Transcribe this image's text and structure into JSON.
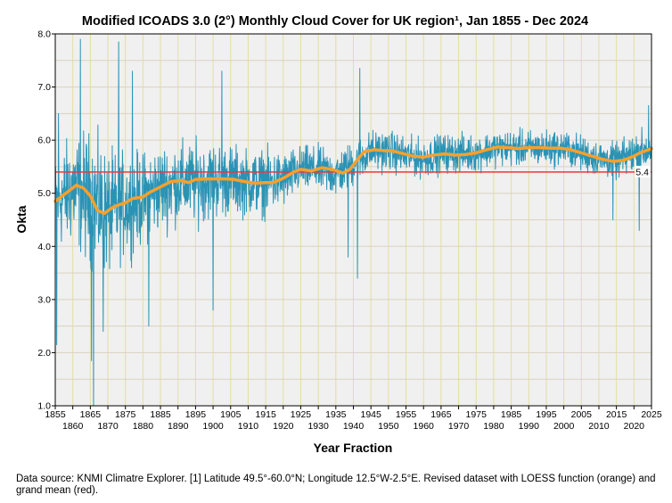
{
  "chart_data": {
    "type": "line",
    "title": "Modified ICOADS 3.0 (2°) Monthly Cloud Cover for UK region¹, Jan 1855 - Dec 2024",
    "xlabel": "Year Fraction",
    "ylabel": "Okta",
    "xlim": [
      1855,
      2025
    ],
    "ylim": [
      1.0,
      8.0
    ],
    "x_ticks_top_row": [
      "1855",
      "1865",
      "1875",
      "1885",
      "1895",
      "1905",
      "1915",
      "1925",
      "1935",
      "1945",
      "1955",
      "1965",
      "1975",
      "1985",
      "1995",
      "2005",
      "2015",
      "2025"
    ],
    "x_ticks_bottom_row": [
      "1860",
      "1870",
      "1880",
      "1890",
      "1900",
      "1910",
      "1920",
      "1930",
      "1940",
      "1950",
      "1960",
      "1970",
      "1980",
      "1990",
      "2000",
      "2010",
      "2020"
    ],
    "y_ticks": [
      "1.0",
      "2.0",
      "3.0",
      "4.0",
      "5.0",
      "6.0",
      "7.0",
      "8.0"
    ],
    "series": [
      {
        "name": "Monthly cloud cover",
        "color": "#2a93b5",
        "note": "monthly values, Jan 1855 - Dec 2024 (approximate envelope)",
        "envelope": {
          "x": [
            1855,
            1860,
            1865,
            1870,
            1875,
            1880,
            1885,
            1890,
            1895,
            1900,
            1905,
            1910,
            1915,
            1920,
            1925,
            1930,
            1935,
            1940,
            1945,
            1950,
            1955,
            1960,
            1965,
            1970,
            1975,
            1980,
            1985,
            1990,
            1995,
            2000,
            2005,
            2010,
            2015,
            2020,
            2025
          ],
          "center": [
            4.8,
            5.1,
            4.9,
            4.6,
            4.8,
            4.9,
            5.1,
            5.2,
            5.2,
            5.25,
            5.25,
            5.2,
            5.2,
            5.25,
            5.45,
            5.45,
            5.35,
            5.55,
            5.8,
            5.8,
            5.7,
            5.65,
            5.75,
            5.75,
            5.75,
            5.85,
            5.85,
            5.85,
            5.85,
            5.85,
            5.75,
            5.65,
            5.6,
            5.75,
            5.85
          ],
          "spread": [
            0.9,
            1.1,
            1.3,
            1.2,
            1.0,
            0.9,
            0.85,
            0.8,
            0.8,
            0.75,
            0.7,
            0.65,
            0.65,
            0.55,
            0.45,
            0.45,
            0.45,
            0.45,
            0.4,
            0.4,
            0.38,
            0.38,
            0.38,
            0.38,
            0.35,
            0.35,
            0.35,
            0.35,
            0.35,
            0.35,
            0.35,
            0.35,
            0.35,
            0.4,
            0.45
          ]
        },
        "extremes": [
          {
            "x": 1855.4,
            "y": 2.15
          },
          {
            "x": 1855.9,
            "y": 6.5
          },
          {
            "x": 1862.2,
            "y": 7.9
          },
          {
            "x": 1865.3,
            "y": 1.85
          },
          {
            "x": 1865.9,
            "y": 1.0
          },
          {
            "x": 1868.7,
            "y": 2.4
          },
          {
            "x": 1873.1,
            "y": 7.85
          },
          {
            "x": 1877.0,
            "y": 7.3
          },
          {
            "x": 1881.7,
            "y": 2.5
          },
          {
            "x": 1900.0,
            "y": 2.8
          },
          {
            "x": 1902.5,
            "y": 7.3
          },
          {
            "x": 1941.8,
            "y": 7.35
          },
          {
            "x": 1941.2,
            "y": 3.4
          },
          {
            "x": 1938.5,
            "y": 3.8
          },
          {
            "x": 2014.0,
            "y": 4.5
          },
          {
            "x": 2021.5,
            "y": 4.3
          },
          {
            "x": 2024.2,
            "y": 6.65
          }
        ]
      },
      {
        "name": "LOESS function",
        "color": "#f5a02e",
        "x": [
          1855,
          1858,
          1861,
          1863,
          1865,
          1867,
          1869,
          1871,
          1873,
          1875,
          1877,
          1880,
          1882,
          1885,
          1888,
          1891,
          1893,
          1895,
          1898,
          1901,
          1904,
          1906,
          1909,
          1912,
          1915,
          1917,
          1919,
          1921,
          1923,
          1925,
          1928,
          1931,
          1933,
          1935,
          1937,
          1939,
          1941,
          1943,
          1946,
          1949,
          1951,
          1954,
          1957,
          1960,
          1963,
          1966,
          1969,
          1972,
          1975,
          1978,
          1981,
          1984,
          1987,
          1990,
          1993,
          1996,
          1999,
          2002,
          2005,
          2008,
          2011,
          2014,
          2017,
          2020,
          2022,
          2025
        ],
        "y": [
          4.85,
          5.0,
          5.15,
          5.1,
          4.95,
          4.68,
          4.62,
          4.72,
          4.78,
          4.82,
          4.9,
          4.93,
          5.02,
          5.12,
          5.22,
          5.24,
          5.2,
          5.26,
          5.27,
          5.27,
          5.27,
          5.26,
          5.22,
          5.19,
          5.2,
          5.2,
          5.25,
          5.32,
          5.4,
          5.45,
          5.42,
          5.48,
          5.46,
          5.43,
          5.38,
          5.45,
          5.62,
          5.78,
          5.82,
          5.8,
          5.8,
          5.75,
          5.7,
          5.68,
          5.72,
          5.74,
          5.72,
          5.73,
          5.76,
          5.82,
          5.87,
          5.86,
          5.84,
          5.86,
          5.86,
          5.85,
          5.85,
          5.82,
          5.76,
          5.7,
          5.64,
          5.6,
          5.62,
          5.7,
          5.77,
          5.84
        ]
      },
      {
        "name": "Grand mean",
        "color": "#e8383c",
        "value": 5.4
      }
    ],
    "annotations": [
      {
        "text": "5.4",
        "x": 2025,
        "y": 5.4
      }
    ],
    "grid": true,
    "legend": "none"
  },
  "caption": "Data source: KNMI Climatre Explorer. [1] Latitude 49.5°-60.0°N; Longitude 12.5°W-2.5°E. Revised dataset with LOESS function (orange) and grand mean (red).",
  "colors": {
    "plot_background": "#f0f0f0",
    "grid_vertical": "#e3df9f",
    "grid_horizontal": "#d9d3c0",
    "frame": "#000000"
  }
}
